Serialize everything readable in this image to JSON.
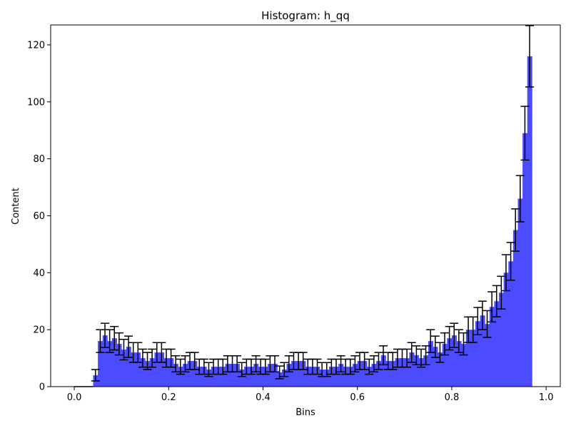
{
  "chart_data": {
    "type": "bar",
    "title": "Histogram: h_qq",
    "xlabel": "Bins",
    "ylabel": "Content",
    "xlim": [
      -0.05,
      1.03
    ],
    "ylim": [
      0,
      127
    ],
    "bin_width": 0.01,
    "bin_start": 0.0,
    "x_ticks": [
      "0.0",
      "0.2",
      "0.4",
      "0.6",
      "0.8",
      "1.0"
    ],
    "y_ticks": [
      "0",
      "20",
      "40",
      "60",
      "80",
      "100",
      "120"
    ],
    "bar_color": "#4b4bff",
    "errorbar_color": "#000000",
    "values": [
      0,
      0,
      0,
      0,
      4,
      16,
      18,
      16,
      17,
      15,
      13,
      14,
      12,
      12,
      10,
      9,
      10,
      12,
      12,
      10,
      10,
      8,
      7,
      8,
      9,
      9,
      7,
      7,
      6,
      7,
      7,
      7,
      8,
      8,
      8,
      6,
      7,
      7,
      8,
      7,
      7,
      8,
      8,
      5,
      6,
      8,
      9,
      9,
      9,
      7,
      7,
      7,
      6,
      6,
      7,
      7,
      8,
      7,
      7,
      8,
      9,
      9,
      7,
      8,
      9,
      11,
      9,
      9,
      10,
      10,
      10,
      12,
      11,
      10,
      11,
      16,
      14,
      12,
      15,
      17,
      18,
      16,
      15,
      20,
      20,
      23,
      25,
      22,
      28,
      30,
      33,
      40,
      44,
      55,
      66,
      89,
      116,
      0,
      0,
      0
    ]
  }
}
